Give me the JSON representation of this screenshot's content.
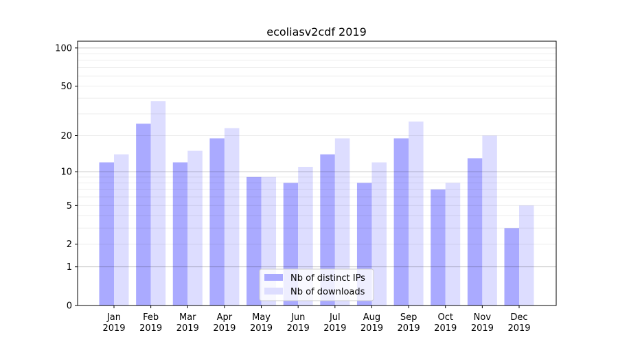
{
  "chart_data": {
    "type": "bar",
    "title": "ecoliasv2cdf 2019",
    "xlabel": "",
    "ylabel": "",
    "yscale": "log(1+y)",
    "ylim": [
      0,
      113
    ],
    "yticks": [
      0,
      1,
      2,
      5,
      10,
      20,
      50,
      100
    ],
    "ytick_labels": [
      "0",
      "1",
      "2",
      "5",
      "10",
      "20",
      "50",
      "100"
    ],
    "grid": true,
    "legend_position": "bottom-center",
    "categories": [
      "Jan\n2019",
      "Feb\n2019",
      "Mar\n2019",
      "Apr\n2019",
      "May\n2019",
      "Jun\n2019",
      "Jul\n2019",
      "Aug\n2019",
      "Sep\n2019",
      "Oct\n2019",
      "Nov\n2019",
      "Dec\n2019"
    ],
    "series": [
      {
        "name": "Nb of distinct IPs",
        "color": "#aaaaff",
        "values": [
          12,
          25,
          12,
          19,
          9,
          8,
          14,
          8,
          19,
          7,
          13,
          3
        ]
      },
      {
        "name": "Nb of downloads",
        "color": "#ddddff",
        "values": [
          14,
          38,
          15,
          23,
          9,
          11,
          19,
          12,
          26,
          8,
          20,
          5
        ]
      }
    ]
  }
}
